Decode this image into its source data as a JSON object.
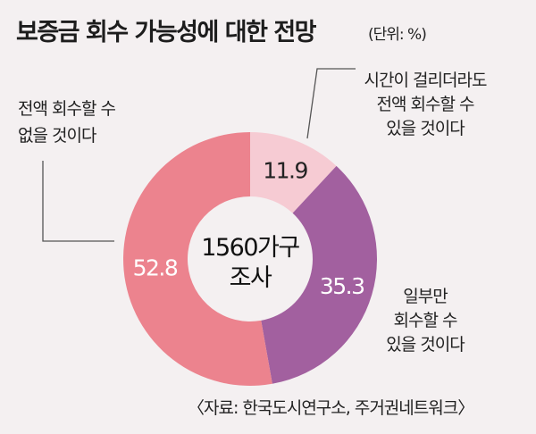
{
  "title": "보증금 회수 가능성에 대한 전망",
  "unit": "(단위: %)",
  "source": "〈자료: 한국도시연구소, 주거권네트워크〉",
  "colors": {
    "background": "#f4f0f1",
    "lines": "#555555"
  },
  "chart_data": {
    "type": "pie",
    "donut": true,
    "center_label": [
      "1560가구",
      "조사"
    ],
    "slices": [
      {
        "label": [
          "시간이 걸리더라도",
          "전액 회수할 수",
          "있을 것이다"
        ],
        "value": 11.9,
        "display": "11.9",
        "color": "#f6cbd3",
        "value_color": "#222222"
      },
      {
        "label": [
          "일부만",
          "회수할 수",
          "있을 것이다"
        ],
        "value": 35.3,
        "display": "35.3",
        "color": "#a2609f",
        "value_color": "#ffffff"
      },
      {
        "label": [
          "전액 회수할 수",
          "없을 것이다"
        ],
        "value": 52.8,
        "display": "52.8",
        "color": "#ec838e",
        "value_color": "#ffffff"
      }
    ]
  }
}
